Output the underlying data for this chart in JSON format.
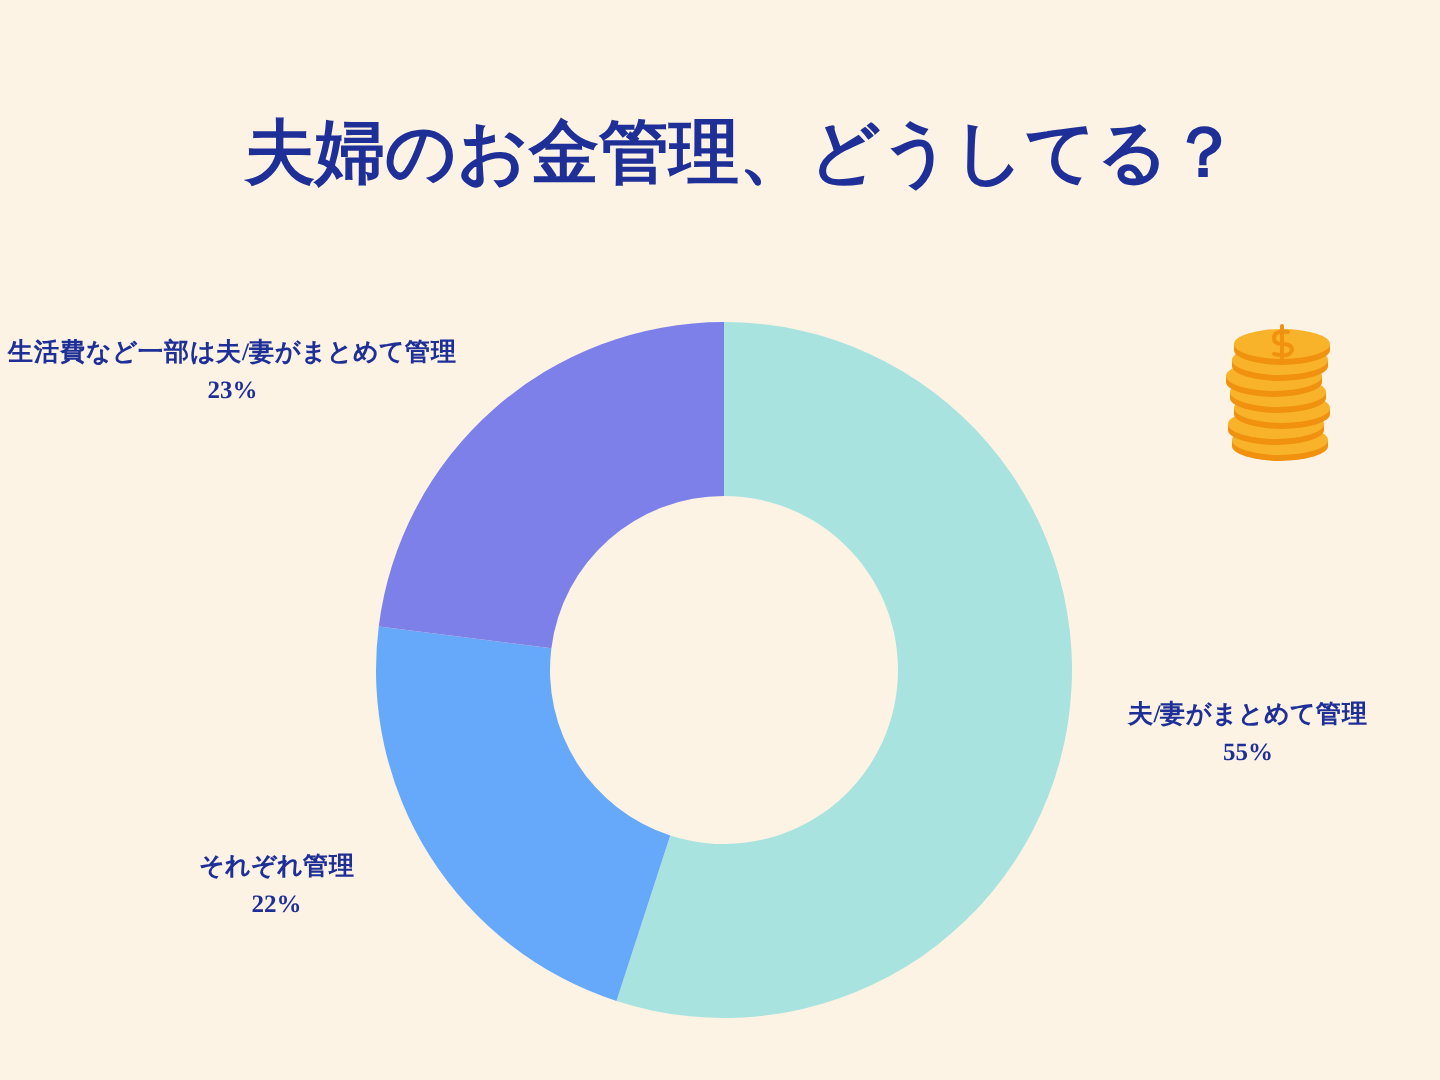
{
  "chart_data": {
    "type": "donut",
    "title": "夫婦のお金管理、どうしてる？",
    "categories": [
      "夫/妻がまとめて管理",
      "それぞれ管理",
      "生活費など一部は夫/妻がまとめて管理"
    ],
    "values": [
      55,
      22,
      23
    ],
    "colors": [
      "#a8e3e0",
      "#66a9fb",
      "#7e80e9"
    ],
    "value_labels": [
      "55%",
      "22%",
      "23%"
    ]
  }
}
